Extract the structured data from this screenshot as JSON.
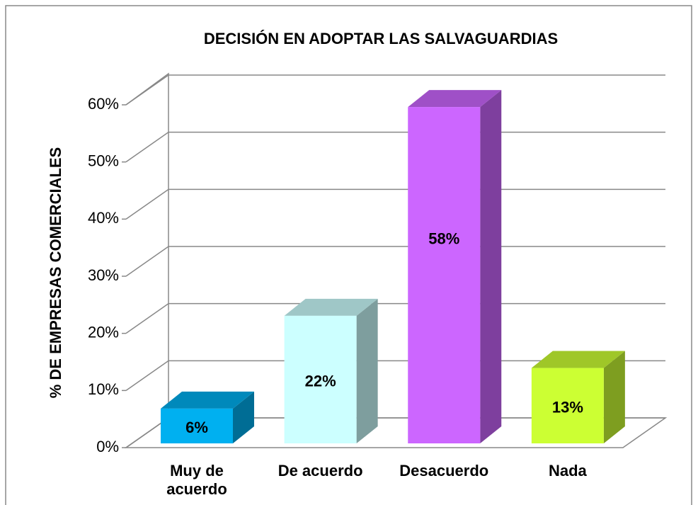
{
  "chart_data": {
    "type": "bar3d",
    "title": "DECISIÓN EN ADOPTAR LAS SALVAGUARDIAS",
    "y_label": "% DE EMPRESAS COMERCIALES",
    "categories": [
      "Muy de acuerdo",
      "De acuerdo",
      "Desacuerdo",
      "Nada"
    ],
    "values": [
      6,
      22,
      58,
      13
    ],
    "value_labels": [
      "6%",
      "22%",
      "58%",
      "13%"
    ],
    "colors": [
      "#00b0f0",
      "#ccffff",
      "#cc66ff",
      "#ccff33"
    ],
    "ylim": [
      0,
      60
    ],
    "yticks": [
      {
        "value": 0,
        "label": "0%"
      },
      {
        "value": 10,
        "label": "10%"
      },
      {
        "value": 20,
        "label": "20%"
      },
      {
        "value": 30,
        "label": "30%"
      },
      {
        "value": 40,
        "label": "40%"
      },
      {
        "value": 50,
        "label": "50%"
      },
      {
        "value": 60,
        "label": "60%"
      }
    ],
    "grid": true
  }
}
